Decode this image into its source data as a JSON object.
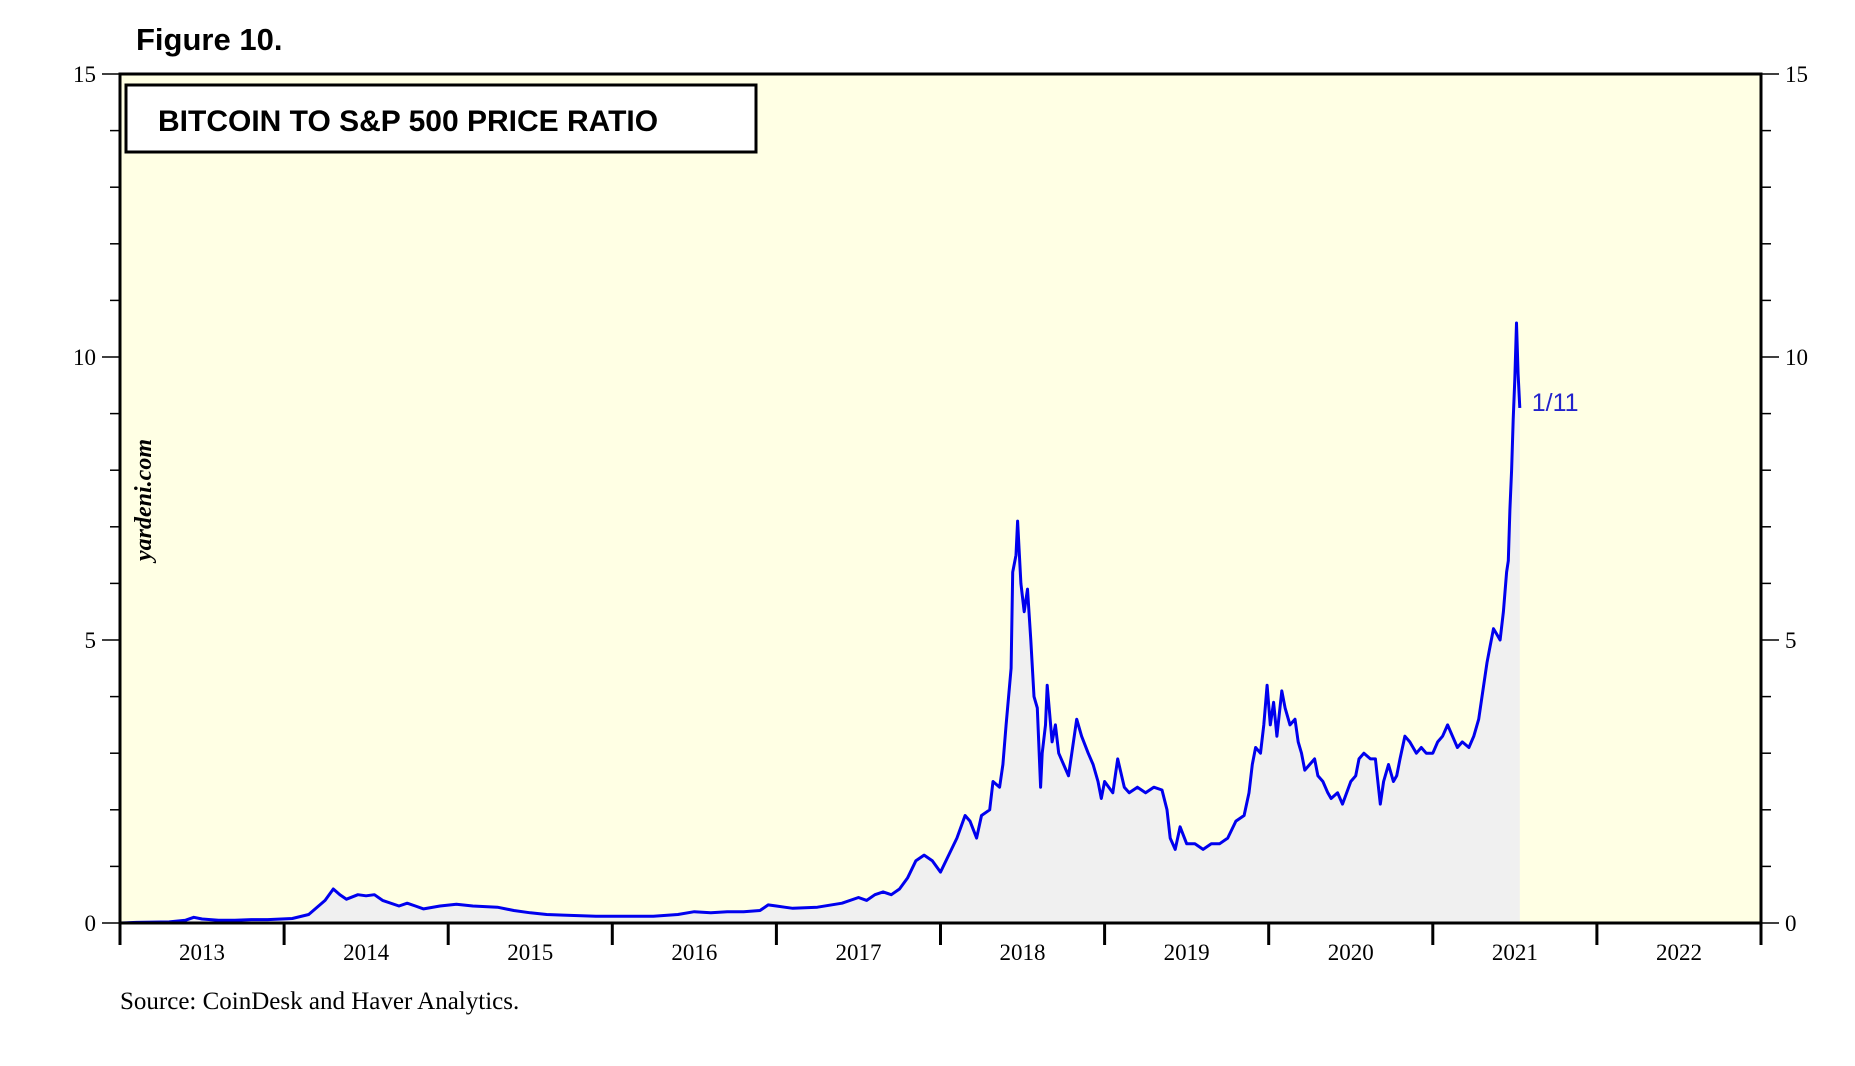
{
  "figure_label": "Figure 10.",
  "source": "Source: CoinDesk and Haver Analytics.",
  "watermark": "yardeni.com",
  "colors": {
    "plot_background": "#ffffe4",
    "line": "#0000ee",
    "area_fill": "#f0f0f0",
    "annotation": "#2222cc"
  },
  "chart_data": {
    "type": "line",
    "title": "BITCOIN TO S&P 500 PRICE RATIO",
    "xlabel": "",
    "ylabel": "",
    "xlim": [
      2012.5,
      2022.5
    ],
    "ylim": [
      0,
      15
    ],
    "y_ticks": [
      0,
      5,
      10,
      15
    ],
    "y_tick_labels": [
      "0",
      "5",
      "10",
      "15"
    ],
    "x_tick_labels": [
      "2013",
      "2014",
      "2015",
      "2016",
      "2017",
      "2018",
      "2019",
      "2020",
      "2021",
      "2022"
    ],
    "grid": false,
    "fill_below_line": true,
    "annotation": {
      "text": "1/11",
      "x": 2021.03,
      "y": 9.1
    },
    "series": [
      {
        "name": "Bitcoin to S&P 500 price ratio",
        "points": [
          [
            2012.5,
            0.0
          ],
          [
            2012.6,
            0.01
          ],
          [
            2012.8,
            0.02
          ],
          [
            2012.9,
            0.05
          ],
          [
            2012.95,
            0.1
          ],
          [
            2013.0,
            0.07
          ],
          [
            2013.1,
            0.05
          ],
          [
            2013.2,
            0.05
          ],
          [
            2013.3,
            0.06
          ],
          [
            2013.4,
            0.06
          ],
          [
            2013.55,
            0.08
          ],
          [
            2013.65,
            0.15
          ],
          [
            2013.75,
            0.4
          ],
          [
            2013.8,
            0.6
          ],
          [
            2013.84,
            0.5
          ],
          [
            2013.88,
            0.42
          ],
          [
            2013.95,
            0.5
          ],
          [
            2014.0,
            0.48
          ],
          [
            2014.05,
            0.5
          ],
          [
            2014.1,
            0.4
          ],
          [
            2014.2,
            0.3
          ],
          [
            2014.25,
            0.35
          ],
          [
            2014.3,
            0.3
          ],
          [
            2014.35,
            0.25
          ],
          [
            2014.45,
            0.3
          ],
          [
            2014.55,
            0.33
          ],
          [
            2014.65,
            0.3
          ],
          [
            2014.8,
            0.28
          ],
          [
            2014.9,
            0.22
          ],
          [
            2015.0,
            0.18
          ],
          [
            2015.1,
            0.15
          ],
          [
            2015.2,
            0.14
          ],
          [
            2015.4,
            0.12
          ],
          [
            2015.6,
            0.12
          ],
          [
            2015.75,
            0.12
          ],
          [
            2015.9,
            0.15
          ],
          [
            2016.0,
            0.2
          ],
          [
            2016.1,
            0.18
          ],
          [
            2016.2,
            0.2
          ],
          [
            2016.3,
            0.2
          ],
          [
            2016.4,
            0.22
          ],
          [
            2016.45,
            0.32
          ],
          [
            2016.5,
            0.3
          ],
          [
            2016.55,
            0.28
          ],
          [
            2016.6,
            0.26
          ],
          [
            2016.75,
            0.28
          ],
          [
            2016.9,
            0.35
          ],
          [
            2017.0,
            0.45
          ],
          [
            2017.05,
            0.4
          ],
          [
            2017.1,
            0.5
          ],
          [
            2017.15,
            0.55
          ],
          [
            2017.2,
            0.5
          ],
          [
            2017.25,
            0.6
          ],
          [
            2017.3,
            0.8
          ],
          [
            2017.35,
            1.1
          ],
          [
            2017.4,
            1.2
          ],
          [
            2017.45,
            1.1
          ],
          [
            2017.5,
            0.9
          ],
          [
            2017.55,
            1.2
          ],
          [
            2017.6,
            1.5
          ],
          [
            2017.65,
            1.9
          ],
          [
            2017.68,
            1.8
          ],
          [
            2017.72,
            1.5
          ],
          [
            2017.75,
            1.9
          ],
          [
            2017.8,
            2.0
          ],
          [
            2017.82,
            2.5
          ],
          [
            2017.86,
            2.4
          ],
          [
            2017.88,
            2.8
          ],
          [
            2017.9,
            3.5
          ],
          [
            2017.93,
            4.5
          ],
          [
            2017.94,
            6.2
          ],
          [
            2017.96,
            6.5
          ],
          [
            2017.97,
            7.1
          ],
          [
            2017.99,
            6.0
          ],
          [
            2018.01,
            5.5
          ],
          [
            2018.03,
            5.9
          ],
          [
            2018.05,
            5.0
          ],
          [
            2018.07,
            4.0
          ],
          [
            2018.09,
            3.8
          ],
          [
            2018.11,
            2.4
          ],
          [
            2018.12,
            3.0
          ],
          [
            2018.14,
            3.5
          ],
          [
            2018.15,
            4.2
          ],
          [
            2018.18,
            3.2
          ],
          [
            2018.2,
            3.5
          ],
          [
            2018.22,
            3.0
          ],
          [
            2018.25,
            2.8
          ],
          [
            2018.28,
            2.6
          ],
          [
            2018.3,
            3.0
          ],
          [
            2018.33,
            3.6
          ],
          [
            2018.36,
            3.3
          ],
          [
            2018.4,
            3.0
          ],
          [
            2018.43,
            2.8
          ],
          [
            2018.46,
            2.5
          ],
          [
            2018.48,
            2.2
          ],
          [
            2018.5,
            2.5
          ],
          [
            2018.55,
            2.3
          ],
          [
            2018.58,
            2.9
          ],
          [
            2018.62,
            2.4
          ],
          [
            2018.65,
            2.3
          ],
          [
            2018.7,
            2.4
          ],
          [
            2018.75,
            2.3
          ],
          [
            2018.8,
            2.4
          ],
          [
            2018.85,
            2.35
          ],
          [
            2018.88,
            2.0
          ],
          [
            2018.9,
            1.5
          ],
          [
            2018.93,
            1.3
          ],
          [
            2018.96,
            1.7
          ],
          [
            2019.0,
            1.4
          ],
          [
            2019.05,
            1.4
          ],
          [
            2019.1,
            1.3
          ],
          [
            2019.15,
            1.4
          ],
          [
            2019.2,
            1.4
          ],
          [
            2019.25,
            1.5
          ],
          [
            2019.3,
            1.8
          ],
          [
            2019.35,
            1.9
          ],
          [
            2019.38,
            2.3
          ],
          [
            2019.4,
            2.8
          ],
          [
            2019.42,
            3.1
          ],
          [
            2019.45,
            3.0
          ],
          [
            2019.47,
            3.5
          ],
          [
            2019.49,
            4.2
          ],
          [
            2019.51,
            3.5
          ],
          [
            2019.53,
            3.9
          ],
          [
            2019.55,
            3.3
          ],
          [
            2019.58,
            4.1
          ],
          [
            2019.6,
            3.8
          ],
          [
            2019.63,
            3.5
          ],
          [
            2019.66,
            3.6
          ],
          [
            2019.68,
            3.2
          ],
          [
            2019.7,
            3.0
          ],
          [
            2019.72,
            2.7
          ],
          [
            2019.75,
            2.8
          ],
          [
            2019.78,
            2.9
          ],
          [
            2019.8,
            2.6
          ],
          [
            2019.83,
            2.5
          ],
          [
            2019.86,
            2.3
          ],
          [
            2019.88,
            2.2
          ],
          [
            2019.92,
            2.3
          ],
          [
            2019.95,
            2.1
          ],
          [
            2020.0,
            2.5
          ],
          [
            2020.03,
            2.6
          ],
          [
            2020.05,
            2.9
          ],
          [
            2020.08,
            3.0
          ],
          [
            2020.12,
            2.9
          ],
          [
            2020.15,
            2.9
          ],
          [
            2020.18,
            2.1
          ],
          [
            2020.2,
            2.5
          ],
          [
            2020.23,
            2.8
          ],
          [
            2020.26,
            2.5
          ],
          [
            2020.28,
            2.6
          ],
          [
            2020.3,
            2.9
          ],
          [
            2020.33,
            3.3
          ],
          [
            2020.36,
            3.2
          ],
          [
            2020.4,
            3.0
          ],
          [
            2020.43,
            3.1
          ],
          [
            2020.46,
            3.0
          ],
          [
            2020.5,
            3.0
          ],
          [
            2020.53,
            3.2
          ],
          [
            2020.56,
            3.3
          ],
          [
            2020.59,
            3.5
          ],
          [
            2020.62,
            3.3
          ],
          [
            2020.65,
            3.1
          ],
          [
            2020.68,
            3.2
          ],
          [
            2020.72,
            3.1
          ],
          [
            2020.75,
            3.3
          ],
          [
            2020.78,
            3.6
          ],
          [
            2020.8,
            4.0
          ],
          [
            2020.83,
            4.6
          ],
          [
            2020.85,
            4.9
          ],
          [
            2020.87,
            5.2
          ],
          [
            2020.89,
            5.1
          ],
          [
            2020.91,
            5.0
          ],
          [
            2020.93,
            5.5
          ],
          [
            2020.95,
            6.2
          ],
          [
            2020.96,
            6.4
          ],
          [
            2020.97,
            7.3
          ],
          [
            2020.98,
            8.0
          ],
          [
            2020.99,
            8.9
          ],
          [
            2021.0,
            9.6
          ],
          [
            2021.01,
            10.6
          ],
          [
            2021.02,
            9.7
          ],
          [
            2021.03,
            9.1
          ]
        ]
      }
    ]
  }
}
